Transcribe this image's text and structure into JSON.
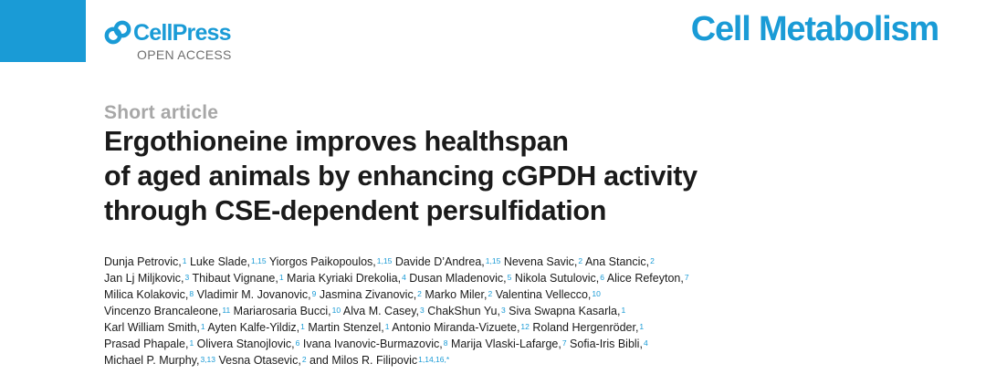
{
  "header": {
    "publisher": "CellPress",
    "access": "OPEN ACCESS",
    "journal": "Cell Metabolism",
    "accent_color": "#1a9bd6",
    "logo_icon": "cellpress-logo-icon"
  },
  "article": {
    "type": "Short article",
    "title_lines": [
      "Ergothioneine improves healthspan",
      "of aged animals by enhancing cGPDH activity",
      "through CSE-dependent persulfidation"
    ]
  },
  "authors": {
    "lines": [
      [
        {
          "name": "Dunja Petrovic,",
          "aff": "1"
        },
        {
          "name": "Luke Slade,",
          "aff": "1,15"
        },
        {
          "name": "Yiorgos Paikopoulos,",
          "aff": "1,15"
        },
        {
          "name": "Davide D’Andrea,",
          "aff": "1,15"
        },
        {
          "name": "Nevena Savic,",
          "aff": "2"
        },
        {
          "name": "Ana Stancic,",
          "aff": "2"
        }
      ],
      [
        {
          "name": "Jan Lj Miljkovic,",
          "aff": "3"
        },
        {
          "name": "Thibaut Vignane,",
          "aff": "1"
        },
        {
          "name": "Maria Kyriaki Drekolia,",
          "aff": "4"
        },
        {
          "name": "Dusan Mladenovic,",
          "aff": "5"
        },
        {
          "name": "Nikola Sutulovic,",
          "aff": "6"
        },
        {
          "name": "Alice Refeyton,",
          "aff": "7"
        }
      ],
      [
        {
          "name": "Milica Kolakovic,",
          "aff": "8"
        },
        {
          "name": "Vladimir M. Jovanovic,",
          "aff": "9"
        },
        {
          "name": "Jasmina Zivanovic,",
          "aff": "2"
        },
        {
          "name": "Marko Miler,",
          "aff": "2"
        },
        {
          "name": "Valentina Vellecco,",
          "aff": "10"
        }
      ],
      [
        {
          "name": "Vincenzo Brancaleone,",
          "aff": "11"
        },
        {
          "name": "Mariarosaria Bucci,",
          "aff": "10"
        },
        {
          "name": "Alva M. Casey,",
          "aff": "3"
        },
        {
          "name": "ChakShun Yu,",
          "aff": "3"
        },
        {
          "name": "Siva Swapna Kasarla,",
          "aff": "1"
        }
      ],
      [
        {
          "name": "Karl William Smith,",
          "aff": "1"
        },
        {
          "name": "Ayten Kalfe-Yildiz,",
          "aff": "1"
        },
        {
          "name": "Martin Stenzel,",
          "aff": "1"
        },
        {
          "name": "Antonio Miranda-Vizuete,",
          "aff": "12"
        },
        {
          "name": "Roland Hergenröder,",
          "aff": "1"
        }
      ],
      [
        {
          "name": "Prasad Phapale,",
          "aff": "1"
        },
        {
          "name": "Olivera Stanojlovic,",
          "aff": "6"
        },
        {
          "name": "Ivana Ivanovic-Burmazovic,",
          "aff": "8"
        },
        {
          "name": "Marija Vlaski-Lafarge,",
          "aff": "7"
        },
        {
          "name": "Sofia-Iris Bibli,",
          "aff": "4"
        }
      ],
      [
        {
          "name": "Michael P. Murphy,",
          "aff": "3,13"
        },
        {
          "name": "Vesna Otasevic,",
          "aff": "2"
        },
        {
          "name": "and Milos R. Filipovic",
          "aff": "1,14,16,*"
        }
      ]
    ]
  }
}
